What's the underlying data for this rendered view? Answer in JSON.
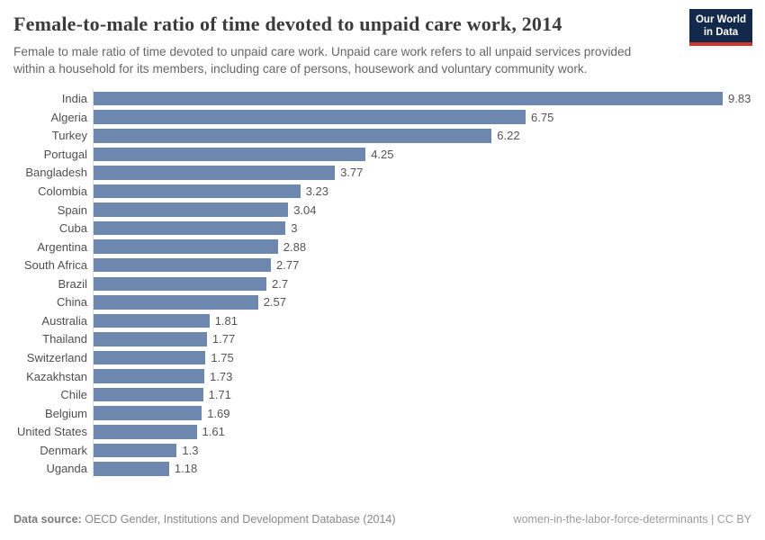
{
  "header": {
    "title": "Female-to-male ratio of time devoted to unpaid care work, 2014",
    "subtitle": "Female to male ratio of time devoted to unpaid care work. Unpaid care work refers to all unpaid services provided within a household for its members, including care of persons, housework and voluntary community work.",
    "logo": {
      "line1": "Our World",
      "line2": "in Data"
    }
  },
  "chart_data": {
    "type": "bar",
    "orientation": "horizontal",
    "title": "Female-to-male ratio of time devoted to unpaid care work, 2014",
    "categories": [
      "India",
      "Algeria",
      "Turkey",
      "Portugal",
      "Bangladesh",
      "Colombia",
      "Spain",
      "Cuba",
      "Argentina",
      "South Africa",
      "Brazil",
      "China",
      "Australia",
      "Thailand",
      "Switzerland",
      "Kazakhstan",
      "Chile",
      "Belgium",
      "United States",
      "Denmark",
      "Uganda"
    ],
    "values": [
      9.83,
      6.75,
      6.22,
      4.25,
      3.77,
      3.23,
      3.04,
      3,
      2.88,
      2.77,
      2.7,
      2.57,
      1.81,
      1.77,
      1.75,
      1.73,
      1.71,
      1.69,
      1.61,
      1.3,
      1.18
    ],
    "value_labels": [
      "9.83",
      "6.75",
      "6.22",
      "4.25",
      "3.77",
      "3.23",
      "3.04",
      "3",
      "2.88",
      "2.77",
      "2.7",
      "2.57",
      "1.81",
      "1.77",
      "1.75",
      "1.73",
      "1.71",
      "1.69",
      "1.61",
      "1.3",
      "1.18"
    ],
    "xlabel": "",
    "ylabel": "",
    "xlim": [
      0,
      9.83
    ],
    "grid": false,
    "legend": false,
    "bar_color": "#6d87ae",
    "axis_line_color": "#dcdcdc"
  },
  "footer": {
    "source_label": "Data source:",
    "source_text": " OECD Gender, Institutions and Development Database (2014)",
    "right_text": "women-in-the-labor-force-determinants | CC BY"
  },
  "colors": {
    "bar": "#6d87ae",
    "logo_bg": "#12294b",
    "logo_stripe": "#d1352b",
    "title_text": "#3b3b3b",
    "subtitle_text": "#666666"
  }
}
